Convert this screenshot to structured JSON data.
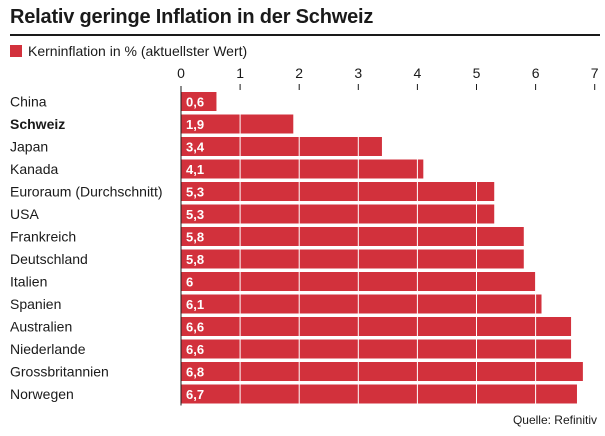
{
  "title": "Relativ geringe Inflation in der Schweiz",
  "legend": {
    "label": "Kerninflation in % (aktuellster Wert)"
  },
  "source": "Quelle: Refinitiv",
  "colors": {
    "bar": "#d2313c",
    "highlight_text": "#1a1a1a",
    "grid": "#ffffff"
  },
  "chart_data": {
    "type": "bar",
    "orientation": "horizontal",
    "categories": [
      "China",
      "Schweiz",
      "Japan",
      "Kanada",
      "Euroraum (Durchschnitt)",
      "USA",
      "Frankreich",
      "Deutschland",
      "Italien",
      "Spanien",
      "Australien",
      "Niederlande",
      "Grossbritannien",
      "Norwegen"
    ],
    "values": [
      0.6,
      1.9,
      3.4,
      4.1,
      5.3,
      5.3,
      5.8,
      5.8,
      6,
      6.1,
      6.6,
      6.6,
      6.8,
      6.7
    ],
    "value_labels": [
      "0,6",
      "1,9",
      "3,4",
      "4,1",
      "5,3",
      "5,3",
      "5,8",
      "5,8",
      "6",
      "6,1",
      "6,6",
      "6,6",
      "6,8",
      "6,7"
    ],
    "highlight": "Schweiz",
    "x_ticks": [
      0,
      1,
      2,
      3,
      4,
      5,
      6,
      7
    ],
    "xlim": [
      0,
      7
    ],
    "grid": true,
    "axis_position": "top",
    "xlabel": "",
    "ylabel": ""
  }
}
